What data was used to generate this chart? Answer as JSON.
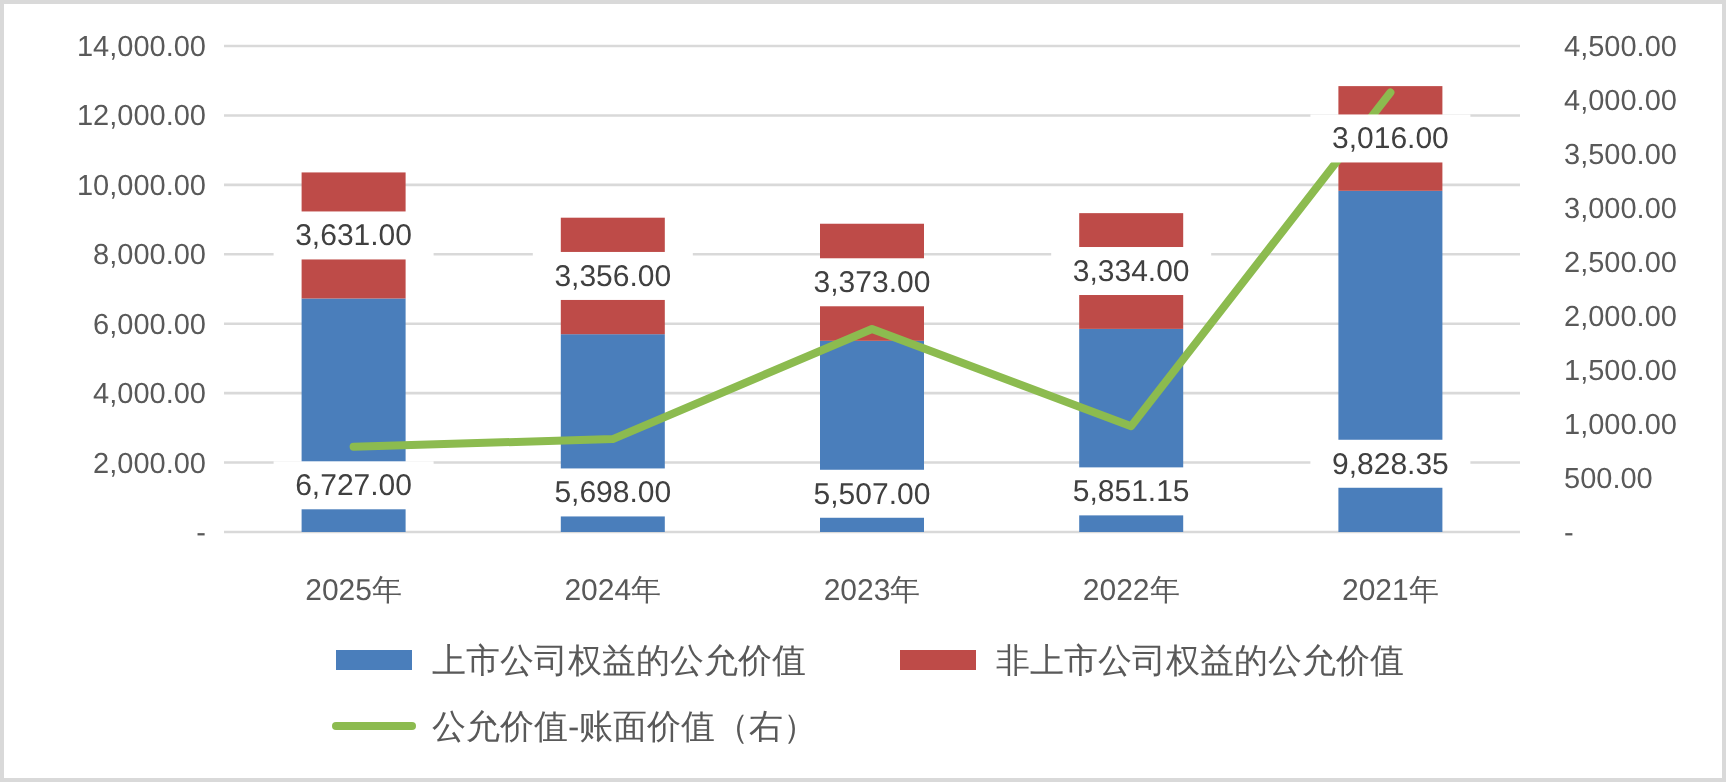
{
  "chart_data": {
    "type": "bar",
    "stacked": true,
    "categories": [
      "2025年",
      "2024年",
      "2023年",
      "2022年",
      "2021年"
    ],
    "series": [
      {
        "name": "上市公司权益的公允价值",
        "color": "#4a7ebb",
        "values": [
          6727.0,
          5698.0,
          5507.0,
          5851.15,
          9828.35
        ],
        "value_labels": [
          "6,727.00",
          "5,698.00",
          "5,507.00",
          "5,851.15",
          "9,828.35"
        ]
      },
      {
        "name": "非上市公司权益的公允价值",
        "color": "#be4b48",
        "values": [
          3631.0,
          3356.0,
          3373.0,
          3334.0,
          3016.0
        ],
        "value_labels": [
          "3,631.00",
          "3,356.00",
          "3,373.00",
          "3,334.00",
          "3,016.00"
        ]
      },
      {
        "name": "公允价值-账面价值（右）",
        "type": "line",
        "axis": "y2",
        "color": "#8cbb4f",
        "values": [
          790,
          860,
          1880,
          980,
          4070
        ]
      }
    ],
    "ylim": [
      0,
      14000
    ],
    "yticks": [
      {
        "value": 0,
        "label": "-"
      },
      {
        "value": 2000,
        "label": "2,000.00"
      },
      {
        "value": 4000,
        "label": "4,000.00"
      },
      {
        "value": 6000,
        "label": "6,000.00"
      },
      {
        "value": 8000,
        "label": "8,000.00"
      },
      {
        "value": 10000,
        "label": "10,000.00"
      },
      {
        "value": 12000,
        "label": "12,000.00"
      },
      {
        "value": 14000,
        "label": "14,000.00"
      }
    ],
    "y2lim": [
      0,
      4500
    ],
    "y2ticks": [
      {
        "value": 0,
        "label": "-"
      },
      {
        "value": 500,
        "label": "500.00"
      },
      {
        "value": 1000,
        "label": "1,000.00"
      },
      {
        "value": 1500,
        "label": "1,500.00"
      },
      {
        "value": 2000,
        "label": "2,000.00"
      },
      {
        "value": 2500,
        "label": "2,500.00"
      },
      {
        "value": 3000,
        "label": "3,000.00"
      },
      {
        "value": 3500,
        "label": "3,500.00"
      },
      {
        "value": 4000,
        "label": "4,000.00"
      },
      {
        "value": 4500,
        "label": "4,500.00"
      }
    ],
    "grid": "y",
    "legend": "bottom",
    "marker": "none",
    "line_style": "solid"
  }
}
